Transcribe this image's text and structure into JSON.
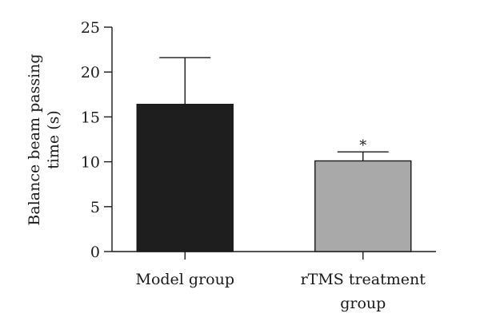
{
  "chart_data": {
    "type": "bar",
    "categories": [
      [
        "Model group"
      ],
      [
        "rTMS treatment",
        "group"
      ]
    ],
    "values": [
      16.4,
      10.1
    ],
    "errors": [
      5.2,
      1.0
    ],
    "colors": [
      "#1e1e1e",
      "#a9a9a9"
    ],
    "significance": [
      "",
      "*"
    ],
    "ylabel": [
      "Balance beam passing",
      "time (s)"
    ],
    "ylim": [
      0,
      25
    ],
    "yticks": [
      0,
      5,
      10,
      15,
      20,
      25
    ],
    "grid": false,
    "legend": "none"
  }
}
